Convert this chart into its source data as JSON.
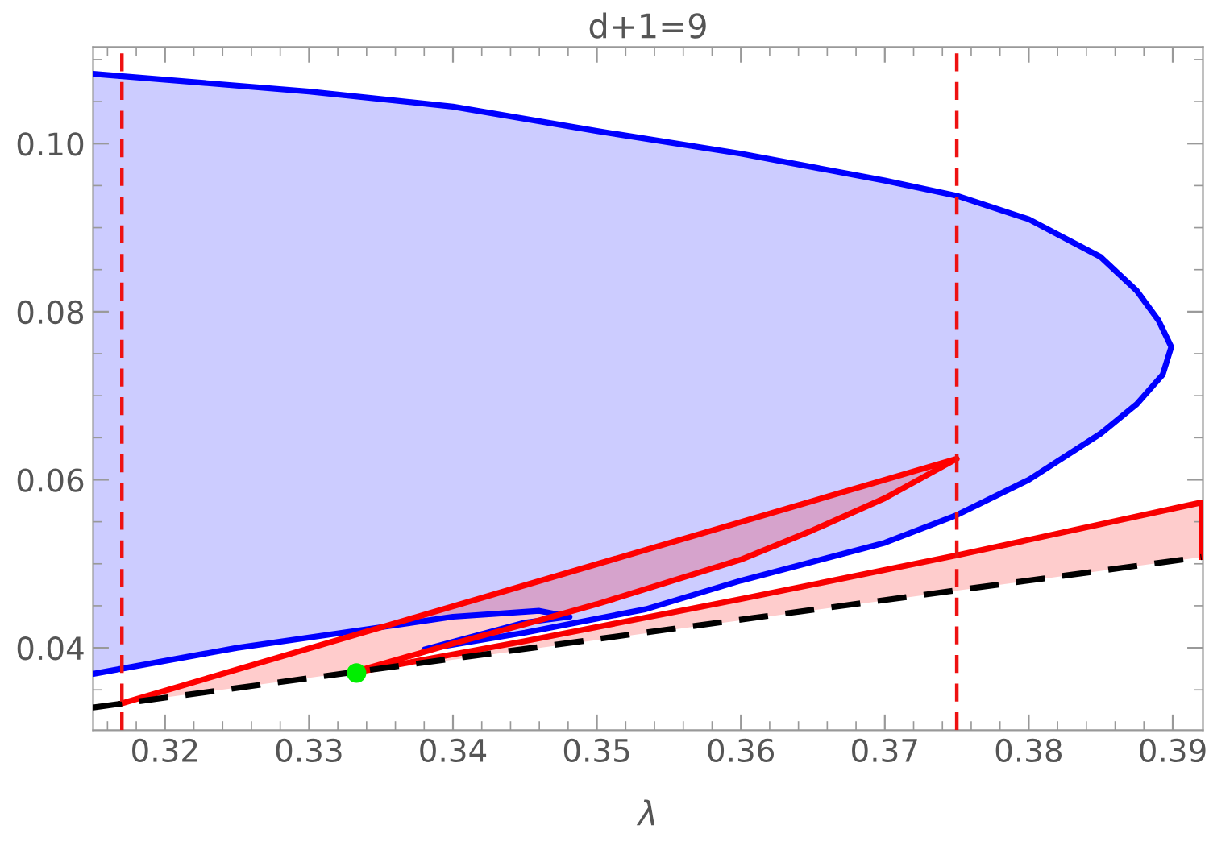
{
  "chart_data": {
    "type": "line",
    "title": "d+1=9",
    "xlabel": "λ",
    "xlim": [
      0.315,
      0.3921
    ],
    "ylim": [
      0.0302,
      0.1115
    ],
    "grid": false,
    "legend": false,
    "xticks": [
      0.32,
      0.33,
      0.34,
      0.35,
      0.36,
      0.37,
      0.38,
      0.39,
      {
        "value": 0.316,
        "label": null
      },
      {
        "value": 0.318,
        "label": null
      },
      {
        "value": 0.322,
        "label": null
      },
      {
        "value": 0.324,
        "label": null
      },
      {
        "value": 0.326,
        "label": null
      },
      {
        "value": 0.328,
        "label": null
      },
      {
        "value": 0.332,
        "label": null
      },
      {
        "value": 0.334,
        "label": null
      },
      {
        "value": 0.336,
        "label": null
      },
      {
        "value": 0.338,
        "label": null
      },
      {
        "value": 0.342,
        "label": null
      },
      {
        "value": 0.344,
        "label": null
      },
      {
        "value": 0.346,
        "label": null
      },
      {
        "value": 0.348,
        "label": null
      },
      {
        "value": 0.352,
        "label": null
      },
      {
        "value": 0.354,
        "label": null
      },
      {
        "value": 0.356,
        "label": null
      },
      {
        "value": 0.358,
        "label": null
      },
      {
        "value": 0.362,
        "label": null
      },
      {
        "value": 0.364,
        "label": null
      },
      {
        "value": 0.366,
        "label": null
      },
      {
        "value": 0.368,
        "label": null
      },
      {
        "value": 0.372,
        "label": null
      },
      {
        "value": 0.374,
        "label": null
      },
      {
        "value": 0.376,
        "label": null
      },
      {
        "value": 0.378,
        "label": null
      },
      {
        "value": 0.382,
        "label": null
      },
      {
        "value": 0.384,
        "label": null
      },
      {
        "value": 0.386,
        "label": null
      },
      {
        "value": 0.388,
        "label": null
      }
    ],
    "yticks": [
      0.04,
      0.06,
      0.08,
      {
        "value": 0.1,
        "label": "0.10"
      },
      {
        "value": 0.035,
        "label": null
      },
      {
        "value": 0.045,
        "label": null
      },
      {
        "value": 0.05,
        "label": null
      },
      {
        "value": 0.055,
        "label": null
      },
      {
        "value": 0.065,
        "label": null
      },
      {
        "value": 0.07,
        "label": null
      },
      {
        "value": 0.075,
        "label": null
      },
      {
        "value": 0.085,
        "label": null
      },
      {
        "value": 0.09,
        "label": null
      },
      {
        "value": 0.095,
        "label": null
      },
      {
        "value": 0.105,
        "label": null
      },
      {
        "value": 0.11,
        "label": null
      }
    ],
    "ref_lines": [
      {
        "axis": "x",
        "value": 0.317,
        "color": "#ee1111",
        "line_style": "dashed"
      },
      {
        "axis": "x",
        "value": 0.375,
        "color": "#ee1111",
        "line_style": "dashed"
      }
    ],
    "series": [
      {
        "type": "area",
        "color": "#0000ff",
        "x": [
          0.315,
          0.33,
          0.34,
          0.35,
          0.36,
          0.37,
          0.375,
          0.38,
          0.385,
          0.3875,
          0.389,
          0.3899,
          0.3893,
          0.3875,
          0.385,
          0.38,
          0.375,
          0.37,
          0.36,
          0.3534,
          0.345,
          0.338,
          0.345,
          0.3481,
          0.346,
          0.34,
          0.3352,
          0.325,
          0.315
        ],
        "values": [
          0.1083,
          0.1062,
          0.1044,
          0.1015,
          0.0988,
          0.0956,
          0.0938,
          0.091,
          0.0865,
          0.0825,
          0.079,
          0.0758,
          0.0725,
          0.069,
          0.0655,
          0.06,
          0.0558,
          0.0525,
          0.048,
          0.0446,
          0.0418,
          0.0398,
          0.043,
          0.0437,
          0.0444,
          0.0437,
          0.0425,
          0.04,
          0.0369
        ]
      },
      {
        "type": "area",
        "color": "#ff0000",
        "x": [
          0.317,
          0.375,
          0.37,
          0.365,
          0.36,
          0.35,
          0.345,
          0.34,
          0.3333
        ],
        "values": [
          0.0334,
          0.0625,
          0.0578,
          0.054,
          0.0505,
          0.0452,
          0.0428,
          0.0405,
          0.0372
        ]
      },
      {
        "type": "area",
        "color": "#f80000",
        "line_style": "solid",
        "x": [
          0.392,
          0.392,
          0.375,
          0.36,
          0.345,
          0.3333,
          0.3333
        ],
        "values": [
          0.0508,
          0.0573,
          0.051,
          0.0458,
          0.0408,
          0.0371,
          0.037
        ]
      },
      {
        "color": "#000000",
        "line_style": "dashed",
        "x": [
          0.315,
          0.392
        ],
        "values": [
          0.0329,
          0.0508
        ]
      },
      {
        "type": "scatter",
        "color": "#00ee00",
        "marker": "circle",
        "x": [
          0.3333
        ],
        "values": [
          0.037
        ]
      }
    ]
  }
}
